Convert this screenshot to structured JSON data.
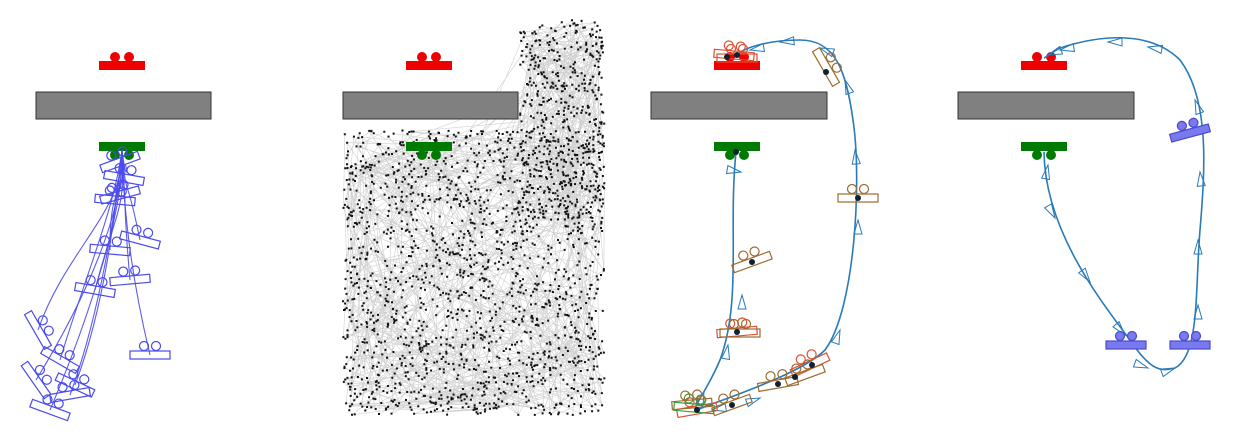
{
  "colors": {
    "goal": "#ee0000",
    "start": "#007a00",
    "obstacle_fill": "#808080",
    "obstacle_stroke": "#333333",
    "rollout": "#4a4aee",
    "tree_edge": "#b0b0b0",
    "tree_node": "#111111",
    "path": "#2a7ab8",
    "pose_brown": "#9c6b2f",
    "pose_red": "#e05030",
    "pose_green": "#3a9a3a",
    "agent_fill": "#7a7aee",
    "agent_stroke": "#4a4ad0"
  },
  "panels": [
    {
      "id": "rollouts",
      "rollout_count": 12
    },
    {
      "id": "search-tree",
      "node_count": 2200
    },
    {
      "id": "planned-path",
      "waypoint_count": 13
    },
    {
      "id": "executed-path",
      "agent_pose_count": 3
    }
  ]
}
